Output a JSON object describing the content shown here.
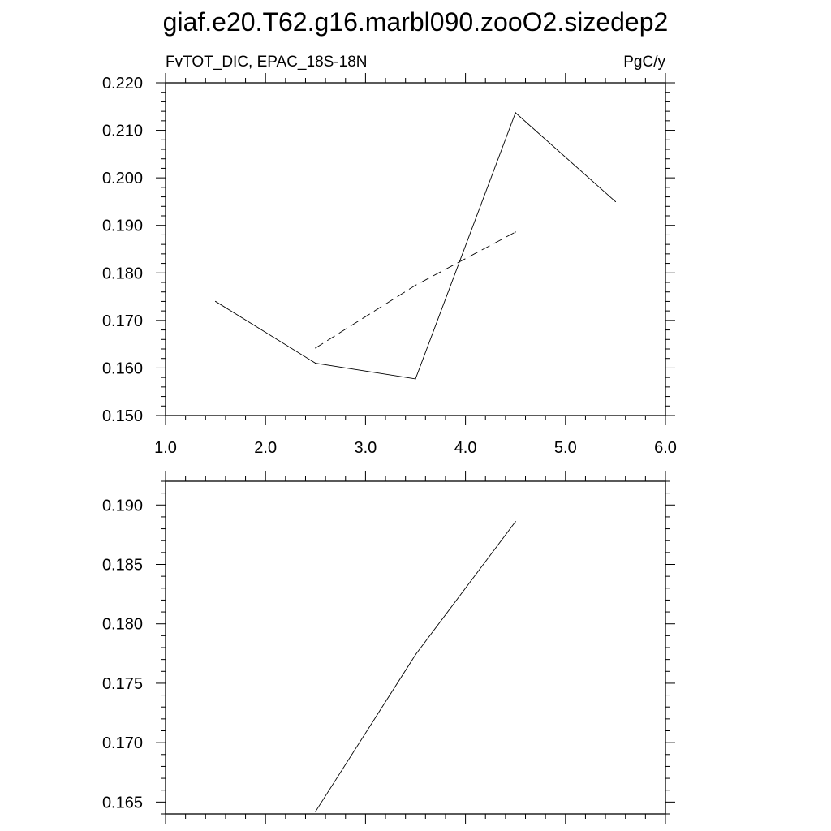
{
  "title": "giaf.e20.T62.g16.marbl090.zooO2.sizedep2",
  "chart_data": [
    {
      "type": "line",
      "left_label": "FvTOT_DIC, EPAC_18S-18N",
      "right_label": "PgC/y",
      "xlim": [
        1.0,
        6.0
      ],
      "ylim": [
        0.15,
        0.22
      ],
      "x_ticks": [
        1.0,
        2.0,
        3.0,
        4.0,
        5.0,
        6.0
      ],
      "x_tick_labels": [
        "1.0",
        "2.0",
        "3.0",
        "4.0",
        "5.0",
        "6.0"
      ],
      "y_ticks": [
        0.15,
        0.16,
        0.17,
        0.18,
        0.19,
        0.2,
        0.21,
        0.22
      ],
      "y_tick_labels": [
        "0.150",
        "0.160",
        "0.170",
        "0.180",
        "0.190",
        "0.200",
        "0.210",
        "0.220"
      ],
      "grid": false,
      "series": [
        {
          "style": "solid",
          "x": [
            1.5,
            2.5,
            3.5,
            4.5,
            5.5
          ],
          "y": [
            0.174,
            0.161,
            0.1577,
            0.2137,
            0.195
          ]
        },
        {
          "style": "dashed",
          "x": [
            2.5,
            3.5,
            4.5
          ],
          "y": [
            0.1642,
            0.1774,
            0.1886
          ]
        }
      ]
    },
    {
      "type": "line",
      "xlim": [
        1.0,
        6.0
      ],
      "ylim": [
        0.164,
        0.192
      ],
      "x_ticks": [
        1.0,
        2.0,
        3.0,
        4.0,
        5.0,
        6.0
      ],
      "y_ticks": [
        0.165,
        0.17,
        0.175,
        0.18,
        0.185,
        0.19
      ],
      "y_tick_labels": [
        "0.165",
        "0.170",
        "0.175",
        "0.180",
        "0.185",
        "0.190"
      ],
      "grid": false,
      "series": [
        {
          "style": "solid",
          "x": [
            2.5,
            3.5,
            4.5
          ],
          "y": [
            0.1642,
            0.1774,
            0.1886
          ]
        }
      ]
    }
  ]
}
